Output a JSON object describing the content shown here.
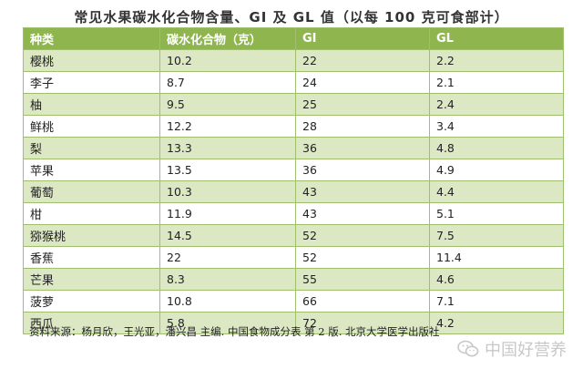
{
  "title": "常见水果碳水化合物含量、GI 及 GL 值（以每 100 克可食部计）",
  "table": {
    "headers": [
      "种类",
      "碳水化合物（克）",
      "GI",
      "GL"
    ],
    "rows": [
      [
        "樱桃",
        "10.2",
        "22",
        "2.2"
      ],
      [
        "李子",
        "8.7",
        "24",
        "2.1"
      ],
      [
        "柚",
        "9.5",
        "25",
        "2.4"
      ],
      [
        "鲜桃",
        "12.2",
        "28",
        "3.4"
      ],
      [
        "梨",
        "13.3",
        "36",
        "4.8"
      ],
      [
        "苹果",
        "13.5",
        "36",
        "4.9"
      ],
      [
        "葡萄",
        "10.3",
        "43",
        "4.4"
      ],
      [
        "柑",
        "11.9",
        "43",
        "5.1"
      ],
      [
        "猕猴桃",
        "14.5",
        "52",
        "7.5"
      ],
      [
        "香蕉",
        "22",
        "52",
        "11.4"
      ],
      [
        "芒果",
        "8.3",
        "55",
        "4.6"
      ],
      [
        "菠萝",
        "10.8",
        "66",
        "7.1"
      ],
      [
        "西瓜",
        "5.8",
        "72",
        "4.2"
      ]
    ]
  },
  "source": "资料来源：杨月欣，王光亚，潘兴昌 主编. 中国食物成分表 第 2 版. 北京大学医学出版社",
  "watermark": {
    "text": "中国好营养",
    "icon": "wechat-icon"
  },
  "colors": {
    "header_bg": "#8fb54e",
    "stripe_bg": "#dce8c4",
    "border": "#9fbf6f"
  }
}
